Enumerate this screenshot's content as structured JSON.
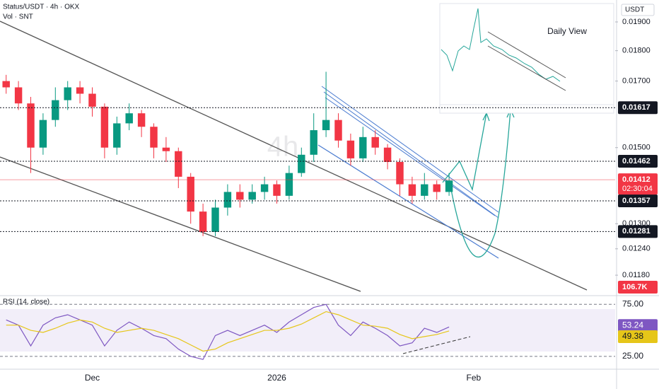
{
  "chart_data": [
    {
      "type": "candlestick",
      "title": "Status/USDT · 4h · OKX",
      "volume_title": "Vol · SNT",
      "watermark": "4h",
      "currency": "USDT",
      "categories": [
        null,
        null,
        null,
        null,
        null,
        null,
        null,
        "Dec",
        null,
        null,
        null,
        null,
        null,
        null,
        null,
        null,
        null,
        null,
        null,
        null,
        null,
        null,
        "2026",
        null,
        null,
        null,
        null,
        null,
        null,
        null,
        null,
        null,
        null,
        null,
        null,
        null,
        null,
        null,
        "Feb",
        null,
        null,
        null,
        null,
        null,
        null,
        null,
        null,
        null,
        null,
        null
      ],
      "open": [
        0.017,
        0.0168,
        0.0163,
        0.015,
        0.0158,
        0.0164,
        0.0168,
        0.0166,
        0.0162,
        0.015,
        0.0157,
        0.016,
        0.0156,
        0.015,
        0.0149,
        0.0142,
        0.0133,
        0.0128,
        0.0134,
        0.0138,
        0.0136,
        0.0138,
        0.014,
        0.0137,
        0.0143,
        0.0148,
        0.0155,
        0.0158,
        0.0152,
        0.0147,
        0.0153,
        0.015,
        0.0146,
        0.014,
        0.0137,
        0.014,
        0.0138,
        null,
        null,
        null,
        null,
        null,
        null,
        null,
        null,
        null,
        null,
        null,
        null,
        null
      ],
      "high": [
        0.0172,
        0.017,
        0.0165,
        0.016,
        0.0168,
        0.017,
        0.017,
        0.0168,
        0.0163,
        0.0159,
        0.0163,
        0.0161,
        0.0157,
        0.0153,
        0.015,
        0.0143,
        0.0135,
        0.0136,
        0.014,
        0.014,
        0.014,
        0.0142,
        0.0141,
        0.0145,
        0.015,
        0.016,
        0.0173,
        0.016,
        0.0154,
        0.0156,
        0.0155,
        0.0151,
        0.0147,
        0.0142,
        0.0143,
        0.0141,
        0.0143,
        null,
        null,
        null,
        null,
        null,
        null,
        null,
        null,
        null,
        null,
        null,
        null,
        null
      ],
      "low": [
        0.0166,
        0.0161,
        0.0143,
        0.0148,
        0.0156,
        0.0161,
        0.0163,
        0.0159,
        0.0147,
        0.0148,
        0.0155,
        0.0153,
        0.0147,
        0.0146,
        0.0139,
        0.013,
        0.0127,
        0.0127,
        0.0132,
        0.0134,
        0.0135,
        0.0136,
        0.0135,
        0.0136,
        0.0142,
        0.0146,
        0.0153,
        0.015,
        0.0145,
        0.0146,
        0.0148,
        0.0144,
        0.0137,
        0.0135,
        0.0136,
        0.0136,
        0.0137,
        null,
        null,
        null,
        null,
        null,
        null,
        null,
        null,
        null,
        null,
        null,
        null,
        null
      ],
      "close": [
        0.0168,
        0.0163,
        0.015,
        0.0158,
        0.0164,
        0.0168,
        0.0166,
        0.0162,
        0.015,
        0.0157,
        0.016,
        0.0156,
        0.015,
        0.0149,
        0.0142,
        0.0133,
        0.0128,
        0.0134,
        0.0138,
        0.0136,
        0.0138,
        0.014,
        0.0137,
        0.0143,
        0.0148,
        0.0155,
        0.0158,
        0.0152,
        0.0147,
        0.0153,
        0.015,
        0.0146,
        0.014,
        0.0137,
        0.014,
        0.0138,
        0.0141,
        null,
        null,
        null,
        null,
        null,
        null,
        null,
        null,
        null,
        null,
        null,
        null,
        null
      ],
      "up_color": "#089981",
      "down_color": "#f23645",
      "log_scale": true,
      "ylim": [
        0.0114,
        0.0198
      ],
      "yticks": [
        {
          "value": 0.019,
          "label": "0.01900"
        },
        {
          "value": 0.018,
          "label": "0.01800"
        },
        {
          "value": 0.017,
          "label": "0.01700"
        },
        {
          "value": 0.015,
          "label": "0.01500"
        },
        {
          "value": 0.013,
          "label": "0.01300"
        },
        {
          "value": 0.0124,
          "label": "0.01240"
        },
        {
          "value": 0.0118,
          "label": "0.01180"
        }
      ],
      "levels": [
        0.01617,
        0.01462,
        0.01357,
        0.01281
      ],
      "last_price": 0.01412,
      "countdown": "02:30:04",
      "volume_last_label": "106.7K"
    },
    {
      "type": "line",
      "title": "RSI (14, close)",
      "ylim": [
        14,
        82
      ],
      "yticks": [
        {
          "value": 75,
          "label": "75.00"
        },
        {
          "value": 25,
          "label": "25.00"
        }
      ],
      "series": [
        {
          "name": "RSI",
          "color": "#7e57c2",
          "values": [
            60,
            55,
            35,
            55,
            62,
            65,
            60,
            55,
            35,
            50,
            58,
            52,
            45,
            42,
            32,
            25,
            22,
            45,
            50,
            45,
            50,
            55,
            48,
            58,
            65,
            72,
            75,
            55,
            45,
            58,
            52,
            45,
            35,
            38,
            52,
            48,
            53.24,
            null,
            null,
            null,
            null,
            null,
            null,
            null,
            null,
            null,
            null,
            null,
            null,
            null
          ]
        },
        {
          "name": "RSI MA",
          "color": "#e6c619",
          "values": [
            55,
            55,
            50,
            48,
            52,
            57,
            60,
            58,
            52,
            48,
            50,
            52,
            50,
            46,
            42,
            36,
            30,
            32,
            38,
            42,
            46,
            50,
            50,
            52,
            56,
            62,
            68,
            65,
            60,
            55,
            54,
            52,
            46,
            42,
            44,
            46,
            49.38,
            null,
            null,
            null,
            null,
            null,
            null,
            null,
            null,
            null,
            null,
            null,
            null,
            null
          ]
        }
      ]
    },
    {
      "type": "inset",
      "title": "Daily View"
    }
  ]
}
